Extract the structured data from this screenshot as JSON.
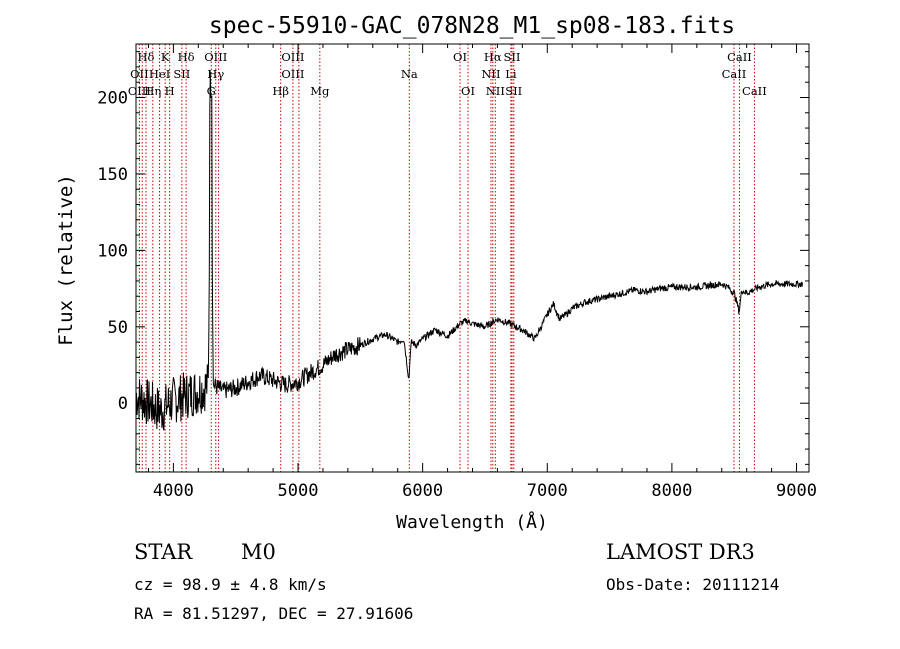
{
  "chart_data": {
    "type": "line",
    "title": "spec-55910-GAC_078N28_M1_sp08-183.fits",
    "xlabel": "Wavelength (Å)",
    "ylabel": "Flux (relative)",
    "xlim": [
      3700,
      9100
    ],
    "ylim": [
      -45,
      235
    ],
    "xticks": [
      4000,
      5000,
      6000,
      7000,
      8000,
      9000
    ],
    "xtick_labels": [
      "4000",
      "5000",
      "6000",
      "7000",
      "8000",
      "9000"
    ],
    "yticks": [
      0,
      50,
      100,
      150,
      200
    ],
    "ytick_labels": [
      "0",
      "50",
      "100",
      "150",
      "200"
    ],
    "series": [
      {
        "name": "flux",
        "x": [
          3700,
          3800,
          3900,
          4000,
          4100,
          4200,
          4280,
          4300,
          4320,
          4400,
          4500,
          4600,
          4700,
          4800,
          4900,
          5000,
          5100,
          5200,
          5300,
          5400,
          5500,
          5600,
          5700,
          5800,
          5850,
          5890,
          5900,
          5910,
          5950,
          6000,
          6100,
          6200,
          6300,
          6350,
          6400,
          6500,
          6600,
          6700,
          6800,
          6870,
          6900,
          6950,
          7000,
          7050,
          7100,
          7150,
          7200,
          7300,
          7400,
          7500,
          7600,
          7700,
          7800,
          7900,
          8000,
          8100,
          8200,
          8300,
          8400,
          8450,
          8500,
          8540,
          8560,
          8600,
          8650,
          8700,
          8800,
          8900,
          9000,
          9050
        ],
        "y": [
          5,
          0,
          -5,
          2,
          5,
          8,
          12,
          205,
          12,
          8,
          10,
          14,
          18,
          15,
          12,
          14,
          20,
          25,
          32,
          35,
          38,
          42,
          45,
          40,
          42,
          15,
          32,
          40,
          38,
          42,
          48,
          44,
          52,
          54,
          52,
          50,
          55,
          52,
          48,
          44,
          42,
          50,
          58,
          65,
          55,
          58,
          62,
          66,
          68,
          70,
          72,
          74,
          73,
          75,
          76,
          76,
          76,
          77,
          78,
          76,
          72,
          60,
          74,
          72,
          74,
          76,
          78,
          78,
          78,
          78
        ]
      }
    ],
    "spectral_lines": [
      {
        "label": "Hδ",
        "wavelength": 3780,
        "row": 1
      },
      {
        "label": "K",
        "wavelength": 3934,
        "row": 1
      },
      {
        "label": "Hδ",
        "wavelength": 4102,
        "row": 1
      },
      {
        "label": "OIII",
        "wavelength": 4340,
        "row": 1
      },
      {
        "label": "OIII",
        "wavelength": 4959,
        "row": 1
      },
      {
        "label": "OI",
        "wavelength": 6300,
        "row": 1
      },
      {
        "label": "Hα",
        "wavelength": 6563,
        "row": 1
      },
      {
        "label": "SII",
        "wavelength": 6717,
        "row": 1
      },
      {
        "label": "CaII",
        "wavelength": 8542,
        "row": 1
      },
      {
        "label": "OII",
        "wavelength": 3727,
        "row": 2
      },
      {
        "label": "HeI",
        "wavelength": 3889,
        "row": 2
      },
      {
        "label": "SII",
        "wavelength": 4068,
        "row": 2
      },
      {
        "label": "Hγ",
        "wavelength": 4340,
        "row": 2
      },
      {
        "label": "OIII",
        "wavelength": 4959,
        "row": 2
      },
      {
        "label": "Na",
        "wavelength": 5893,
        "row": 2
      },
      {
        "label": "NII",
        "wavelength": 6548,
        "row": 2
      },
      {
        "label": "Li",
        "wavelength": 6708,
        "row": 2
      },
      {
        "label": "CaII",
        "wavelength": 8498,
        "row": 2
      },
      {
        "label": "OIII",
        "wavelength": 3727,
        "row": 3
      },
      {
        "label": "Hη",
        "wavelength": 3835,
        "row": 3
      },
      {
        "label": "H",
        "wavelength": 3970,
        "row": 3
      },
      {
        "label": "G",
        "wavelength": 4304,
        "row": 3
      },
      {
        "label": "Hβ",
        "wavelength": 4861,
        "row": 3
      },
      {
        "label": "Mg",
        "wavelength": 5175,
        "row": 3
      },
      {
        "label": "OI",
        "wavelength": 6364,
        "row": 3
      },
      {
        "label": "NII",
        "wavelength": 6583,
        "row": 3
      },
      {
        "label": "SII",
        "wavelength": 6731,
        "row": 3
      },
      {
        "label": "CaII",
        "wavelength": 8662,
        "row": 3
      }
    ],
    "line_markers": [
      3727,
      3750,
      3780,
      3835,
      3889,
      3934,
      3970,
      4068,
      4102,
      4304,
      4340,
      4363,
      4861,
      4959,
      5007,
      5175,
      5893,
      6300,
      6364,
      6548,
      6563,
      6583,
      6708,
      6717,
      6731,
      8498,
      8542,
      8662
    ]
  },
  "info": {
    "class_label": "STAR",
    "subclass": "M0",
    "survey": "LAMOST DR3",
    "redshift": "cz = 98.9 ± 4.8 km/s",
    "obs_date": "Obs-Date: 20111214",
    "coords": "RA =  81.51297, DEC =  27.91606"
  },
  "colors": {
    "marker_line": "#cc0000",
    "spectrum": "#000000"
  }
}
